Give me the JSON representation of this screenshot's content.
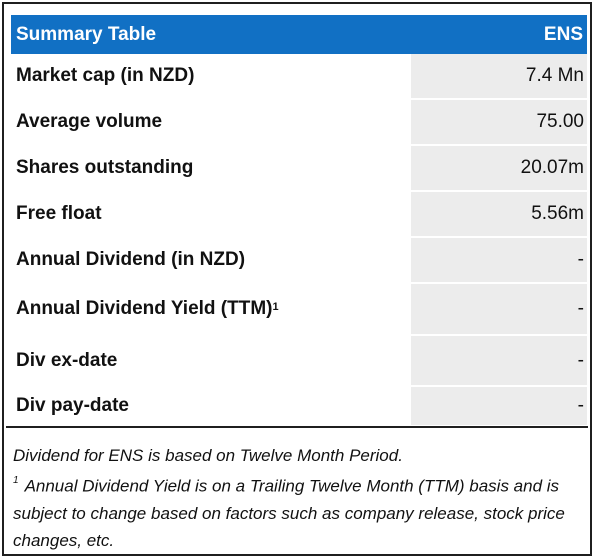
{
  "table": {
    "title": "Summary Table",
    "ticker": "ENS",
    "rows": [
      {
        "label": "Market cap (in NZD)",
        "sup": "",
        "value": "7.4 Mn"
      },
      {
        "label": "Average volume",
        "sup": "",
        "value": "75.00"
      },
      {
        "label": "Shares outstanding",
        "sup": "",
        "value": "20.07m"
      },
      {
        "label": "Free float",
        "sup": "",
        "value": "5.56m"
      },
      {
        "label": "Annual Dividend (in NZD)",
        "sup": "",
        "value": "-"
      },
      {
        "label": "Annual Dividend Yield (TTM)",
        "sup": "1",
        "value": "-"
      },
      {
        "label": "Div ex-date",
        "sup": "",
        "value": "-"
      },
      {
        "label": "Div pay-date",
        "sup": "",
        "value": "-"
      }
    ],
    "colors": {
      "header_bg": "#1170C4",
      "value_bg": "#ECECEC"
    }
  },
  "notes": {
    "line1": "Dividend for ENS is based on Twelve Month Period.",
    "footnote_marker": "1",
    "footnote_text": "Annual Dividend Yield is on a Trailing Twelve Month (TTM) basis and is subject to change based on factors such as company release, stock price changes, etc."
  }
}
